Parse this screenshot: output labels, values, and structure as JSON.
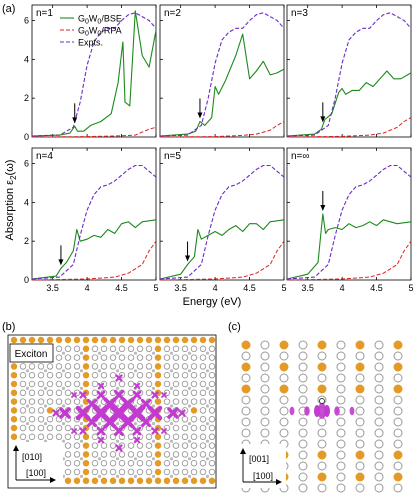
{
  "panel_labels": {
    "a": "(a)",
    "b": "(b)",
    "c": "(c)"
  },
  "colors": {
    "bse": "#1b8a1b",
    "rpa": "#e02020",
    "expt": "#6a2bc9",
    "orange_atom": "#e39a27",
    "gray_atom": "#9a9a9a",
    "exciton": "#c23ad0"
  },
  "axes": {
    "ylabel": "Absorption ε",
    "ylabel_sub": "2",
    "ylabel_tail": "(ω)",
    "xlabel": "Energy (eV)"
  },
  "legend": [
    {
      "label": "G",
      "sub1": "0",
      "mid": "W",
      "sub2": "0",
      "tail": "/BSE",
      "style": "solid",
      "color": "#1b8a1b"
    },
    {
      "label": "G",
      "sub1": "0",
      "mid": "W",
      "sub2": "0",
      "tail": "/RPA",
      "style": "dashed",
      "color": "#e02020"
    },
    {
      "label": "Expts.",
      "style": "dashed",
      "color": "#6a2bc9"
    }
  ],
  "chart_data": [
    {
      "type": "line",
      "title": "n=1",
      "xlim": [
        3.2,
        5.0
      ],
      "ylim": [
        0,
        6.8
      ],
      "xticks": [
        "3.5",
        "4",
        "4.5",
        "5"
      ],
      "yticks": [
        "0",
        "2",
        "4",
        "6"
      ],
      "arrow_x": 3.82,
      "series": [
        {
          "name": "G0W0/BSE",
          "x": [
            3.2,
            3.6,
            3.75,
            3.82,
            3.86,
            3.95,
            4.05,
            4.2,
            4.35,
            4.45,
            4.52,
            4.55,
            4.62,
            4.7,
            4.8,
            4.9,
            5.0
          ],
          "y": [
            0.05,
            0.1,
            0.2,
            0.55,
            0.3,
            0.3,
            0.6,
            0.8,
            1.2,
            2.8,
            4.9,
            1.8,
            1.6,
            6.5,
            4.2,
            3.6,
            5.5
          ]
        },
        {
          "name": "G0W0/RPA",
          "x": [
            3.2,
            4.0,
            4.5,
            4.7,
            4.8,
            4.9,
            5.0
          ],
          "y": [
            0.0,
            0.02,
            0.06,
            0.1,
            0.25,
            0.4,
            0.5
          ]
        },
        {
          "name": "Expts.",
          "x": [
            3.2,
            3.6,
            3.8,
            3.9,
            4.0,
            4.1,
            4.2,
            4.3,
            4.4,
            4.5,
            4.6,
            4.7,
            4.8,
            4.9,
            5.0
          ],
          "y": [
            0.05,
            0.1,
            0.5,
            1.8,
            3.7,
            4.9,
            5.4,
            5.6,
            5.6,
            6.0,
            6.3,
            6.4,
            6.2,
            6.0,
            5.6
          ]
        }
      ]
    },
    {
      "type": "line",
      "title": "n=2",
      "xlim": [
        3.2,
        5.0
      ],
      "ylim": [
        0,
        6.8
      ],
      "xticks": [
        "3.5",
        "4",
        "4.5",
        "5"
      ],
      "yticks": [
        "0",
        "2",
        "4",
        "6"
      ],
      "arrow_x": 3.78,
      "series": [
        {
          "name": "G0W0/BSE",
          "x": [
            3.2,
            3.6,
            3.72,
            3.78,
            3.85,
            3.95,
            4.0,
            4.05,
            4.15,
            4.3,
            4.4,
            4.5,
            4.6,
            4.7,
            4.8,
            4.9,
            5.0
          ],
          "y": [
            0.05,
            0.15,
            0.3,
            0.8,
            0.6,
            1.0,
            2.6,
            2.2,
            2.9,
            4.2,
            5.3,
            3.0,
            3.4,
            3.9,
            3.2,
            3.3,
            3.5
          ]
        },
        {
          "name": "G0W0/RPA",
          "x": [
            3.2,
            4.0,
            4.4,
            4.6,
            4.8,
            4.9,
            5.0
          ],
          "y": [
            0.0,
            0.02,
            0.08,
            0.15,
            0.35,
            0.6,
            0.8
          ]
        },
        {
          "name": "Expts.",
          "x": [
            3.2,
            3.6,
            3.8,
            3.9,
            4.0,
            4.1,
            4.2,
            4.3,
            4.4,
            4.5,
            4.6,
            4.7,
            4.8,
            4.9,
            5.0
          ],
          "y": [
            0.05,
            0.1,
            0.6,
            2.0,
            3.8,
            5.0,
            5.4,
            5.6,
            5.6,
            6.0,
            6.3,
            6.4,
            6.2,
            6.0,
            5.6
          ]
        }
      ]
    },
    {
      "type": "line",
      "title": "n=3",
      "xlim": [
        3.2,
        5.0
      ],
      "ylim": [
        0,
        6.8
      ],
      "xticks": [
        "3.5",
        "4",
        "4.5",
        "5"
      ],
      "yticks": [
        "0",
        "2",
        "4",
        "6"
      ],
      "arrow_x": 3.72,
      "series": [
        {
          "name": "G0W0/BSE",
          "x": [
            3.2,
            3.6,
            3.7,
            3.75,
            3.85,
            3.95,
            4.0,
            4.05,
            4.15,
            4.25,
            4.35,
            4.45,
            4.55,
            4.65,
            4.75,
            4.85,
            5.0
          ],
          "y": [
            0.05,
            0.15,
            0.4,
            0.9,
            1.2,
            2.3,
            2.5,
            2.2,
            2.4,
            2.4,
            2.8,
            2.6,
            3.0,
            3.4,
            3.0,
            3.0,
            3.3
          ]
        },
        {
          "name": "G0W0/RPA",
          "x": [
            3.2,
            4.0,
            4.4,
            4.6,
            4.8,
            4.9,
            5.0
          ],
          "y": [
            0.0,
            0.03,
            0.1,
            0.2,
            0.5,
            0.8,
            1.0
          ]
        },
        {
          "name": "Expts.",
          "x": [
            3.2,
            3.6,
            3.8,
            3.9,
            4.0,
            4.1,
            4.2,
            4.3,
            4.4,
            4.5,
            4.6,
            4.7,
            4.8,
            4.9,
            5.0
          ],
          "y": [
            0.05,
            0.1,
            0.6,
            2.0,
            3.8,
            5.0,
            5.4,
            5.6,
            5.6,
            6.0,
            6.3,
            6.4,
            6.2,
            6.0,
            5.6
          ]
        }
      ]
    },
    {
      "type": "line",
      "title": "n=4",
      "xlim": [
        3.2,
        5.0
      ],
      "ylim": [
        0,
        6.8
      ],
      "xticks": [
        "3.5",
        "4",
        "4.5",
        "5"
      ],
      "yticks": [
        "0",
        "2",
        "4",
        "6"
      ],
      "arrow_x": 3.62,
      "series": [
        {
          "name": "G0W0/BSE",
          "x": [
            3.2,
            3.55,
            3.62,
            3.7,
            3.8,
            3.85,
            3.9,
            4.0,
            4.1,
            4.2,
            4.3,
            4.4,
            4.5,
            4.6,
            4.7,
            4.8,
            5.0
          ],
          "y": [
            0.05,
            0.2,
            0.6,
            0.9,
            1.5,
            2.6,
            2.0,
            2.1,
            2.3,
            2.2,
            2.6,
            2.4,
            2.9,
            3.0,
            2.7,
            3.0,
            3.1
          ]
        },
        {
          "name": "G0W0/RPA",
          "x": [
            3.2,
            4.0,
            4.4,
            4.6,
            4.8,
            4.9,
            5.0
          ],
          "y": [
            0.0,
            0.05,
            0.15,
            0.35,
            0.8,
            1.5,
            2.0
          ]
        },
        {
          "name": "Expts.",
          "x": [
            3.2,
            3.6,
            3.8,
            3.9,
            4.0,
            4.1,
            4.2,
            4.3,
            4.4,
            4.5,
            4.6,
            4.7,
            4.8,
            4.9,
            5.0
          ],
          "y": [
            0.05,
            0.15,
            0.8,
            2.3,
            3.6,
            4.4,
            4.8,
            4.9,
            5.1,
            5.4,
            5.7,
            5.9,
            5.9,
            5.6,
            5.3
          ]
        }
      ]
    },
    {
      "type": "line",
      "title": "n=5",
      "xlim": [
        3.2,
        5.0
      ],
      "ylim": [
        0,
        6.8
      ],
      "xticks": [
        "3.5",
        "4",
        "4.5",
        "5"
      ],
      "yticks": [
        "0",
        "2",
        "4",
        "6"
      ],
      "arrow_x": 3.6,
      "series": [
        {
          "name": "G0W0/BSE",
          "x": [
            3.2,
            3.5,
            3.6,
            3.7,
            3.75,
            3.8,
            3.9,
            4.0,
            4.1,
            4.2,
            4.3,
            4.4,
            4.5,
            4.6,
            4.7,
            4.8,
            5.0
          ],
          "y": [
            0.05,
            0.3,
            0.8,
            1.2,
            2.6,
            2.1,
            2.3,
            2.5,
            2.3,
            2.6,
            2.8,
            2.5,
            2.9,
            2.9,
            2.6,
            3.0,
            3.1
          ]
        },
        {
          "name": "G0W0/RPA",
          "x": [
            3.2,
            4.0,
            4.4,
            4.6,
            4.8,
            4.9,
            5.0
          ],
          "y": [
            0.0,
            0.05,
            0.15,
            0.35,
            0.8,
            1.5,
            2.0
          ]
        },
        {
          "name": "Expts.",
          "x": [
            3.2,
            3.6,
            3.8,
            3.9,
            4.0,
            4.1,
            4.2,
            4.3,
            4.4,
            4.5,
            4.6,
            4.7,
            4.8,
            4.9,
            5.0
          ],
          "y": [
            0.05,
            0.15,
            0.8,
            2.3,
            3.6,
            4.4,
            4.8,
            4.9,
            5.1,
            5.4,
            5.7,
            5.9,
            5.9,
            5.6,
            5.3
          ]
        }
      ]
    },
    {
      "type": "line",
      "title": "n=∞",
      "xlim": [
        3.2,
        5.0
      ],
      "ylim": [
        0,
        6.8
      ],
      "xticks": [
        "3.5",
        "4",
        "4.5",
        "5"
      ],
      "yticks": [
        "0",
        "2",
        "4",
        "6"
      ],
      "arrow_x": 3.72,
      "series": [
        {
          "name": "G0W0/BSE",
          "x": [
            3.2,
            3.5,
            3.65,
            3.72,
            3.76,
            3.8,
            3.9,
            4.0,
            4.1,
            4.2,
            4.3,
            4.4,
            4.5,
            4.6,
            4.7,
            4.8,
            5.0
          ],
          "y": [
            0.05,
            0.3,
            0.9,
            3.4,
            2.4,
            2.6,
            2.7,
            2.6,
            2.9,
            2.7,
            2.8,
            3.0,
            2.8,
            3.1,
            3.0,
            2.9,
            3.0
          ]
        },
        {
          "name": "G0W0/RPA",
          "x": [
            3.2,
            4.0,
            4.4,
            4.6,
            4.8,
            4.9,
            5.0
          ],
          "y": [
            0.0,
            0.05,
            0.15,
            0.35,
            0.8,
            1.5,
            2.0
          ]
        },
        {
          "name": "Expts.",
          "x": [
            3.2,
            3.6,
            3.8,
            3.9,
            4.0,
            4.1,
            4.2,
            4.3,
            4.4,
            4.5,
            4.6,
            4.7,
            4.8,
            4.9,
            5.0
          ],
          "y": [
            0.05,
            0.15,
            0.8,
            2.3,
            3.6,
            4.4,
            4.8,
            4.9,
            5.1,
            5.4,
            5.7,
            5.9,
            5.9,
            5.6,
            5.3
          ]
        }
      ]
    }
  ],
  "panel_b": {
    "box_label": "Exciton",
    "axis_up": "[010]",
    "axis_right": "[100]"
  },
  "panel_c": {
    "axis_up": "[001]",
    "axis_right": "[100]"
  }
}
